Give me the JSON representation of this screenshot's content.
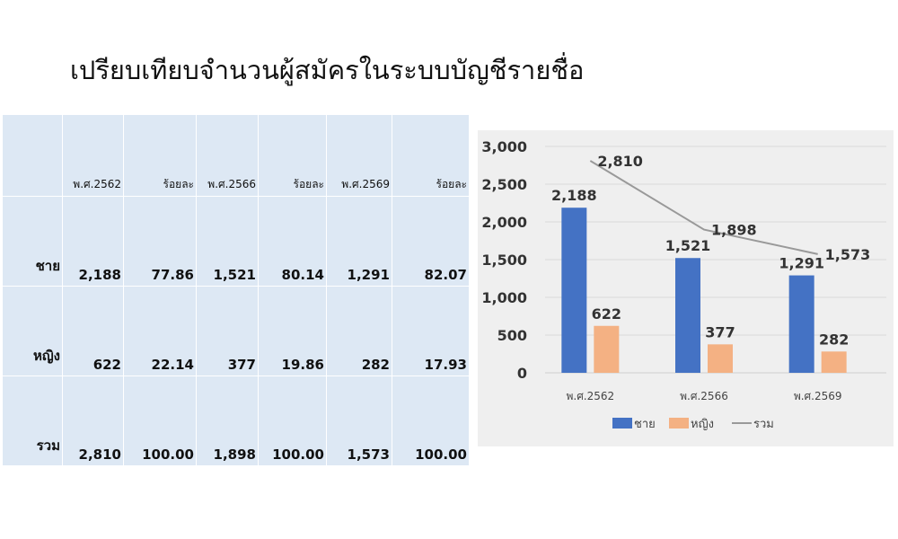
{
  "title": "เปรียบเทียบจำนวนผู้สมัครในระบบบัญชีรายชื่อ",
  "table": {
    "headers": [
      "",
      "พ.ศ.2562",
      "ร้อยละ",
      "พ.ศ.2566",
      "ร้อยละ",
      "พ.ศ.2569",
      "ร้อยละ"
    ],
    "rows": [
      [
        "ชาย",
        "2,188",
        "77.86",
        "1,521",
        "80.14",
        "1,291",
        "82.07"
      ],
      [
        "หญิง",
        "622",
        "22.14",
        "377",
        "19.86",
        "282",
        "17.93"
      ],
      [
        "รวม",
        "2,810",
        "100.00",
        "1,898",
        "100.00",
        "1,573",
        "100.00"
      ]
    ]
  },
  "chart_data": {
    "type": "bar+line",
    "categories": [
      "พ.ศ.2562",
      "พ.ศ.2566",
      "พ.ศ.2569"
    ],
    "series": [
      {
        "name": "ชาย",
        "type": "bar",
        "color": "#4472c4",
        "values": [
          2188,
          1521,
          1291
        ],
        "labels": [
          "2,188",
          "1,521",
          "1,291"
        ]
      },
      {
        "name": "หญิง",
        "type": "bar",
        "color": "#f4b183",
        "values": [
          622,
          377,
          282
        ],
        "labels": [
          "622",
          "377",
          "282"
        ]
      },
      {
        "name": "รวม",
        "type": "line",
        "color": "#999999",
        "values": [
          2810,
          1898,
          1573
        ],
        "labels": [
          "2,810",
          "1,898",
          "1,573"
        ]
      }
    ],
    "ylim": [
      0,
      3000
    ],
    "yticks": [
      "0",
      "500",
      "1,000",
      "1,500",
      "2,000",
      "2,500",
      "3,000"
    ],
    "grid": true,
    "legend": "bottom"
  }
}
